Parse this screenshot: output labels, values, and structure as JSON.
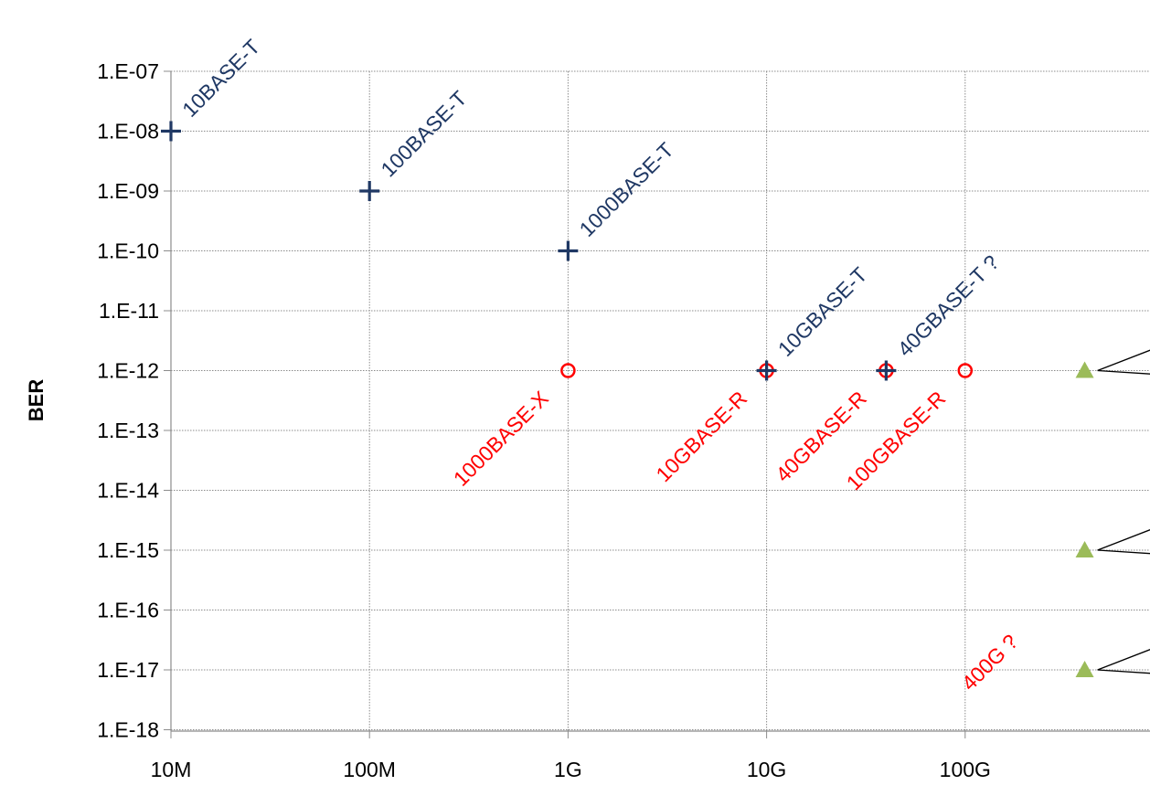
{
  "chart_data": {
    "type": "scatter",
    "xscale": "log",
    "yscale": "log",
    "xlim": [
      10000000,
      600000000000
    ],
    "ylim": [
      1e-18,
      1e-07
    ],
    "grid": true,
    "title": "",
    "xlabel": "",
    "ylabel": "BER",
    "x_ticks": [
      {
        "value": 10000000,
        "label": "10M"
      },
      {
        "value": 100000000,
        "label": "100M"
      },
      {
        "value": 1000000000,
        "label": "1G"
      },
      {
        "value": 10000000000,
        "label": "10G"
      },
      {
        "value": 100000000000,
        "label": "100G"
      }
    ],
    "y_ticks": [
      {
        "value": 1e-07,
        "label": "1.E-07"
      },
      {
        "value": 1e-08,
        "label": "1.E-08"
      },
      {
        "value": 1e-09,
        "label": "1.E-09"
      },
      {
        "value": 1e-10,
        "label": "1.E-10"
      },
      {
        "value": 1e-11,
        "label": "1.E-11"
      },
      {
        "value": 1e-12,
        "label": "1.E-12"
      },
      {
        "value": 1e-13,
        "label": "1.E-13"
      },
      {
        "value": 1e-14,
        "label": "1.E-14"
      },
      {
        "value": 1e-15,
        "label": "1.E-15"
      },
      {
        "value": 1e-16,
        "label": "1.E-16"
      },
      {
        "value": 1e-17,
        "label": "1.E-17"
      },
      {
        "value": 1e-18,
        "label": "1.E-18"
      }
    ],
    "series": [
      {
        "marker": "plus",
        "color": "#1f3864",
        "points": [
          {
            "x": 10000000,
            "y": 1e-08
          },
          {
            "x": 100000000,
            "y": 1e-09
          },
          {
            "x": 1000000000,
            "y": 1e-10
          },
          {
            "x": 10000000000,
            "y": 1e-12
          },
          {
            "x": 40000000000,
            "y": 1e-12
          }
        ]
      },
      {
        "marker": "circle",
        "color": "#ff0000",
        "points": [
          {
            "x": 1000000000,
            "y": 1e-12
          },
          {
            "x": 10000000000,
            "y": 1e-12
          },
          {
            "x": 40000000000,
            "y": 1e-12
          },
          {
            "x": 100000000000,
            "y": 1e-12
          }
        ]
      },
      {
        "marker": "triangle",
        "color": "#9bbb59",
        "points": [
          {
            "x": 400000000000,
            "y": 1e-12
          },
          {
            "x": 400000000000,
            "y": 1e-15
          },
          {
            "x": 400000000000,
            "y": 1e-17
          }
        ]
      }
    ],
    "annotations": [
      {
        "text": "10BASE-T",
        "x": 10000000,
        "y": 1e-08,
        "color": "#1f3864"
      },
      {
        "text": "100BASE-T",
        "x": 100000000,
        "y": 1e-09,
        "color": "#1f3864"
      },
      {
        "text": "1000BASE-T",
        "x": 1000000000,
        "y": 1e-10,
        "color": "#1f3864"
      },
      {
        "text": "10GBASE-T",
        "x": 10000000000,
        "y": 1e-12,
        "color": "#1f3864"
      },
      {
        "text": "40GBASE-T ?",
        "x": 40000000000,
        "y": 1e-12,
        "color": "#1f3864"
      },
      {
        "text": "1000BASE-X",
        "x": 1000000000,
        "y": 1e-12,
        "color": "#ff0000"
      },
      {
        "text": "10GBASE-R",
        "x": 10000000000,
        "y": 1e-12,
        "color": "#ff0000"
      },
      {
        "text": "40GBASE-R",
        "x": 40000000000,
        "y": 1e-12,
        "color": "#ff0000"
      },
      {
        "text": "100GBASE-R",
        "x": 100000000000,
        "y": 1e-12,
        "color": "#ff0000"
      },
      {
        "text": "400G ?",
        "x": 400000000000,
        "y": 1e-15,
        "color": "#ff0000"
      }
    ]
  }
}
